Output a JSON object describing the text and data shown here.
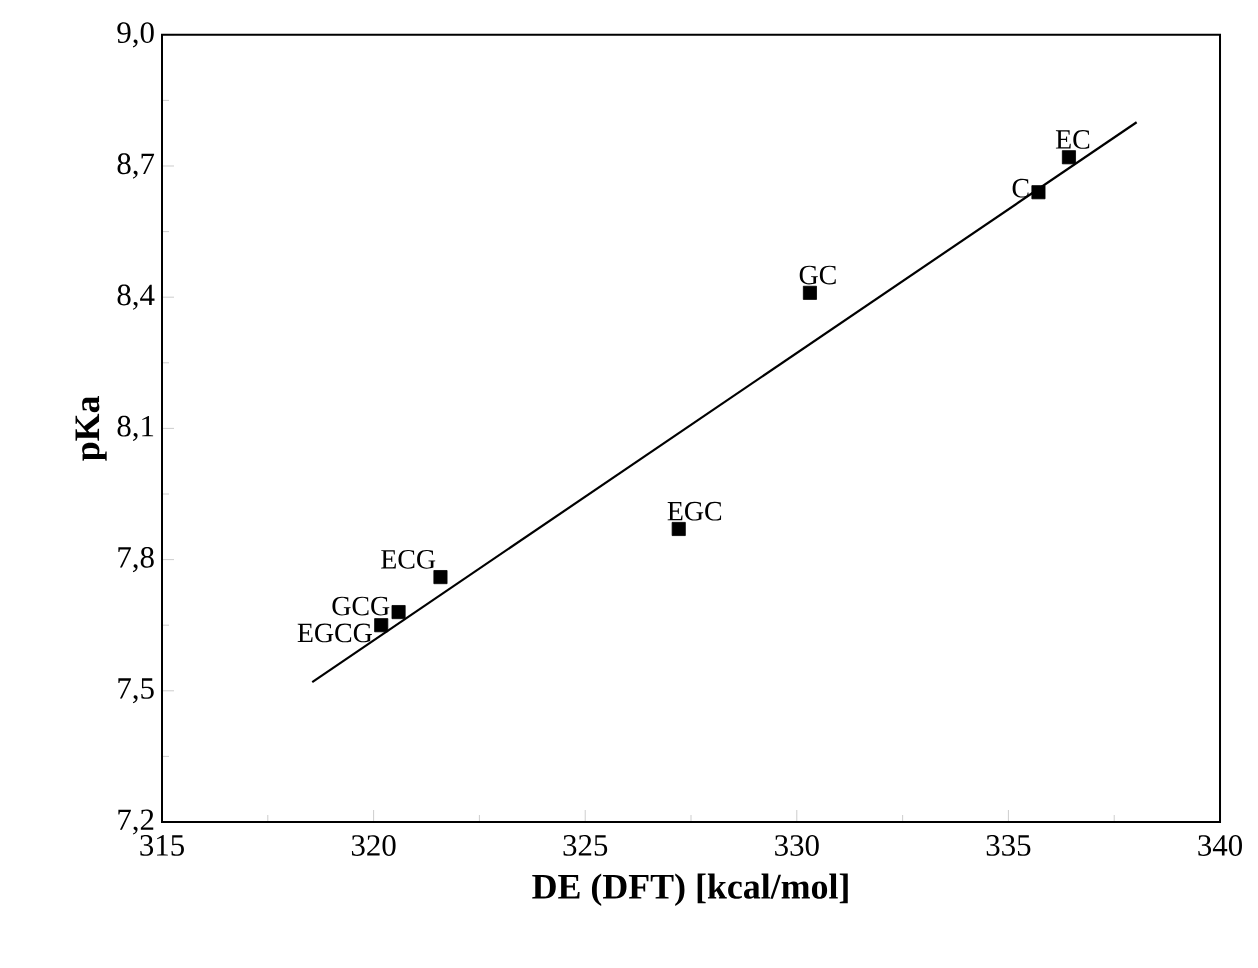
{
  "chart_data": {
    "type": "scatter",
    "xlabel": "DE (DFT) [kcal/mol]",
    "ylabel": "pKa",
    "xlim": [
      315,
      340
    ],
    "xticks": [
      315,
      320,
      325,
      330,
      335,
      340
    ],
    "ylim": [
      7.2,
      9.0
    ],
    "yticks": [
      {
        "value": 7.2,
        "label": "7,2"
      },
      {
        "value": 7.5,
        "label": "7,5"
      },
      {
        "value": 7.8,
        "label": "7,8"
      },
      {
        "value": 8.1,
        "label": "8,1"
      },
      {
        "value": 8.4,
        "label": "8,4"
      },
      {
        "value": 8.7,
        "label": "8,7"
      },
      {
        "value": 9.0,
        "label": "9,0"
      }
    ],
    "series": [
      {
        "marker": "square",
        "color": "#000000",
        "x": [
          336.43,
          335.71,
          330.31,
          327.21,
          321.58,
          320.59,
          320.18
        ],
        "values": [
          8.72,
          8.64,
          8.41,
          7.87,
          7.76,
          7.68,
          7.65
        ]
      },
      {
        "type": "line",
        "color": "#000000",
        "line_style": "solid",
        "x": [
          318.55,
          338.03
        ],
        "values": [
          7.52,
          8.8
        ]
      }
    ],
    "annotations": [
      {
        "text": "EC",
        "x": 336.43,
        "y": 8.72
      },
      {
        "text": "C",
        "x": 335.71,
        "y": 8.64
      },
      {
        "text": "GC",
        "x": 330.31,
        "y": 8.41
      },
      {
        "text": "EGC",
        "x": 327.21,
        "y": 7.87
      },
      {
        "text": "ECG",
        "x": 321.58,
        "y": 7.76
      },
      {
        "text": "GCG",
        "x": 320.59,
        "y": 7.68
      },
      {
        "text": "EGCG",
        "x": 320.18,
        "y": 7.65
      }
    ]
  }
}
